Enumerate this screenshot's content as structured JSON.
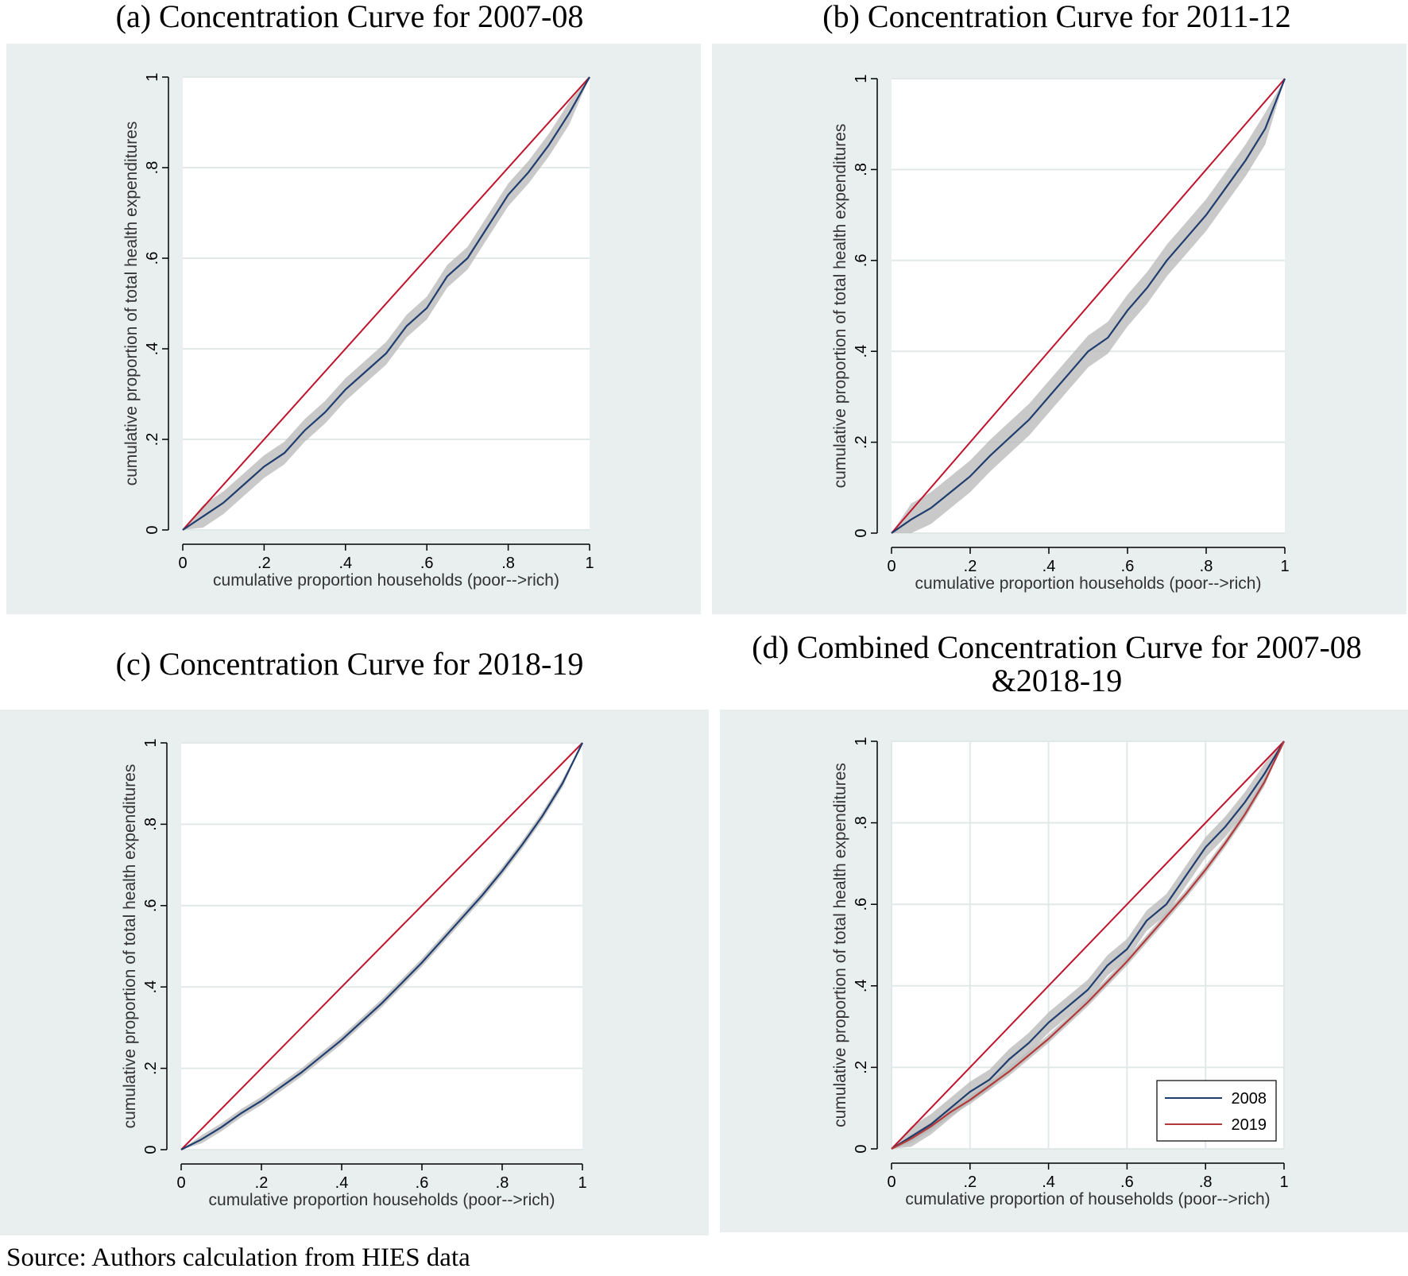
{
  "source_note": "Source: Authors calculation from HIES data",
  "colors": {
    "panel_bg": "#e8efee",
    "plot_bg": "#ffffff",
    "equality": "#c0142d",
    "curve_blue": "#1f3d6e",
    "curve_red": "#b23a3a",
    "band": "#b7b7b7",
    "grid": "#e1e9e8"
  },
  "chart_data": [
    {
      "type": "line",
      "title": "(a) Concentration Curve for 2007-08",
      "xlabel": "cumulative proportion households (poor-->rich)",
      "ylabel": "cumulative proportion of total health expenditures",
      "xlim": [
        0,
        1
      ],
      "ylim": [
        0,
        1
      ],
      "xticks": [
        "0",
        ".2",
        ".4",
        ".6",
        ".8",
        "1"
      ],
      "yticks": [
        "0",
        ".2",
        ".4",
        ".6",
        ".8",
        "1"
      ],
      "grid": "horizontal",
      "legend": null,
      "series": [
        {
          "name": "Equality line",
          "role": "equality",
          "x": [
            0,
            1
          ],
          "y": [
            0,
            1
          ]
        },
        {
          "name": "Concentration curve",
          "role": "curve",
          "color_key": "curve_blue",
          "x": [
            0,
            0.05,
            0.1,
            0.15,
            0.2,
            0.25,
            0.3,
            0.35,
            0.4,
            0.45,
            0.5,
            0.55,
            0.6,
            0.65,
            0.7,
            0.75,
            0.8,
            0.85,
            0.9,
            0.95,
            1
          ],
          "y": [
            0,
            0.03,
            0.06,
            0.1,
            0.14,
            0.17,
            0.22,
            0.26,
            0.31,
            0.35,
            0.39,
            0.45,
            0.49,
            0.56,
            0.6,
            0.67,
            0.74,
            0.79,
            0.85,
            0.92,
            1
          ],
          "band": 0.025
        }
      ]
    },
    {
      "type": "line",
      "title": "(b) Concentration Curve for 2011-12",
      "xlabel": "cumulative proportion households (poor-->rich)",
      "ylabel": "cumulative proportion of total health expenditures",
      "xlim": [
        0,
        1
      ],
      "ylim": [
        0,
        1
      ],
      "xticks": [
        "0",
        ".2",
        ".4",
        ".6",
        ".8",
        "1"
      ],
      "yticks": [
        "0",
        ".2",
        ".4",
        ".6",
        ".8",
        "1"
      ],
      "grid": "horizontal",
      "legend": null,
      "series": [
        {
          "name": "Equality line",
          "role": "equality",
          "x": [
            0,
            1
          ],
          "y": [
            0,
            1
          ]
        },
        {
          "name": "Concentration curve",
          "role": "curve",
          "color_key": "curve_blue",
          "x": [
            0,
            0.05,
            0.1,
            0.15,
            0.2,
            0.25,
            0.3,
            0.35,
            0.4,
            0.45,
            0.5,
            0.55,
            0.6,
            0.65,
            0.7,
            0.75,
            0.8,
            0.85,
            0.9,
            0.95,
            1
          ],
          "y": [
            0,
            0.03,
            0.055,
            0.09,
            0.125,
            0.17,
            0.21,
            0.25,
            0.3,
            0.35,
            0.4,
            0.43,
            0.49,
            0.54,
            0.6,
            0.65,
            0.7,
            0.76,
            0.82,
            0.89,
            1
          ],
          "band": 0.035
        }
      ]
    },
    {
      "type": "line",
      "title": "(c) Concentration Curve for 2018-19",
      "xlabel": "cumulative proportion households (poor-->rich)",
      "ylabel": "cumulative proportion of total health expenditures",
      "xlim": [
        0,
        1
      ],
      "ylim": [
        0,
        1
      ],
      "xticks": [
        "0",
        ".2",
        ".4",
        ".6",
        ".8",
        "1"
      ],
      "yticks": [
        "0",
        ".2",
        ".4",
        ".6",
        ".8",
        "1"
      ],
      "grid": "horizontal",
      "legend": null,
      "series": [
        {
          "name": "Equality line",
          "role": "equality",
          "x": [
            0,
            1
          ],
          "y": [
            0,
            1
          ]
        },
        {
          "name": "Concentration curve",
          "role": "curve",
          "color_key": "curve_blue",
          "x": [
            0,
            0.05,
            0.1,
            0.15,
            0.2,
            0.25,
            0.3,
            0.35,
            0.4,
            0.45,
            0.5,
            0.55,
            0.6,
            0.65,
            0.7,
            0.75,
            0.8,
            0.85,
            0.9,
            0.95,
            1
          ],
          "y": [
            0,
            0.025,
            0.055,
            0.09,
            0.12,
            0.155,
            0.19,
            0.23,
            0.27,
            0.315,
            0.36,
            0.41,
            0.46,
            0.515,
            0.57,
            0.625,
            0.685,
            0.75,
            0.82,
            0.9,
            1
          ],
          "band": 0.01
        }
      ]
    },
    {
      "type": "line",
      "title": "(d) Combined Concentration Curve for 2007-08",
      "title_line2": "&2018-19",
      "xlabel": "cumulative proportion of households (poor-->rich)",
      "ylabel": "cumulative proportion of total health expenditures",
      "xlim": [
        0,
        1
      ],
      "ylim": [
        0,
        1
      ],
      "xticks": [
        "0",
        ".2",
        ".4",
        ".6",
        ".8",
        "1"
      ],
      "yticks": [
        "0",
        ".2",
        ".4",
        ".6",
        ".8",
        "1"
      ],
      "grid": "both",
      "legend": {
        "position": "bottom-right",
        "entries": [
          "2008",
          "2019"
        ]
      },
      "series": [
        {
          "name": "Equality line",
          "role": "equality",
          "x": [
            0,
            1
          ],
          "y": [
            0,
            1
          ]
        },
        {
          "name": "2008",
          "role": "curve",
          "color_key": "curve_blue",
          "x": [
            0,
            0.05,
            0.1,
            0.15,
            0.2,
            0.25,
            0.3,
            0.35,
            0.4,
            0.45,
            0.5,
            0.55,
            0.6,
            0.65,
            0.7,
            0.75,
            0.8,
            0.85,
            0.9,
            0.95,
            1
          ],
          "y": [
            0,
            0.03,
            0.06,
            0.1,
            0.14,
            0.17,
            0.22,
            0.26,
            0.31,
            0.35,
            0.39,
            0.45,
            0.49,
            0.56,
            0.6,
            0.67,
            0.74,
            0.79,
            0.85,
            0.92,
            1
          ],
          "band": 0.025
        },
        {
          "name": "2019",
          "role": "curve",
          "color_key": "curve_red",
          "x": [
            0,
            0.05,
            0.1,
            0.15,
            0.2,
            0.25,
            0.3,
            0.35,
            0.4,
            0.45,
            0.5,
            0.55,
            0.6,
            0.65,
            0.7,
            0.75,
            0.8,
            0.85,
            0.9,
            0.95,
            1
          ],
          "y": [
            0,
            0.025,
            0.055,
            0.09,
            0.12,
            0.155,
            0.19,
            0.23,
            0.27,
            0.315,
            0.36,
            0.41,
            0.46,
            0.515,
            0.57,
            0.625,
            0.685,
            0.75,
            0.82,
            0.9,
            1
          ],
          "band": 0.01
        }
      ]
    }
  ]
}
